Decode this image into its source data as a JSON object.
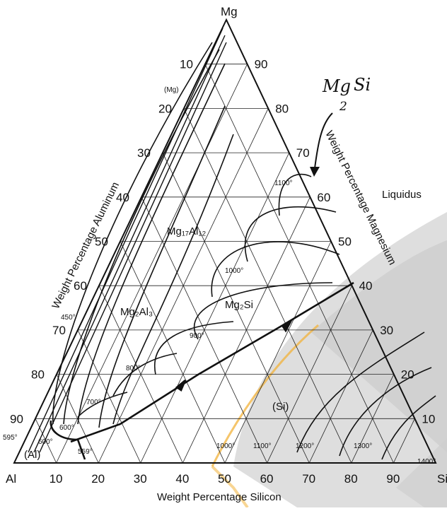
{
  "vertices": {
    "top": "Mg",
    "left": "Al",
    "right": "Si"
  },
  "axes": {
    "left": "Weight Percentage Aluminum",
    "right": "Weight Percentage Magnesium",
    "bottom": "Weight Percentage Silicon"
  },
  "left_ticks": [
    "10",
    "20",
    "30",
    "40",
    "50",
    "60",
    "70",
    "80",
    "90"
  ],
  "right_ticks": [
    "90",
    "80",
    "70",
    "60",
    "50",
    "40",
    "30",
    "20",
    "10"
  ],
  "bottom_ticks": [
    "10",
    "20",
    "30",
    "40",
    "50",
    "60",
    "70",
    "80",
    "90"
  ],
  "liquidus_label": "Liquidus",
  "handwritten": {
    "main": "Mg",
    "sub": "2",
    "tail": "Si"
  },
  "phase_labels": {
    "mg_phase": "(Mg)",
    "mg17al12": "Mg₁₇Al₁₂",
    "mg2al3": "Mg₂Al₃",
    "mg2si": "Mg₂Si",
    "si_phase": "(Si)",
    "al_phase": "(Al)"
  },
  "isotherms": {
    "t1100_top": "1100°",
    "t1000_mid": "1000°",
    "t900": "900°",
    "t800": "800°",
    "t700": "700°",
    "t600a": "600°",
    "t600b": "600°",
    "t595": "595°",
    "t559": "559°",
    "t450": "450°",
    "t1000_bot": "1000°",
    "t1100_bot": "1100°",
    "t1200": "1200°",
    "t1300": "1300°",
    "t1400": "1400°"
  },
  "colors": {
    "ink": "#111111",
    "shade": "#d4d4d4",
    "highlight": "#f2b23a"
  }
}
